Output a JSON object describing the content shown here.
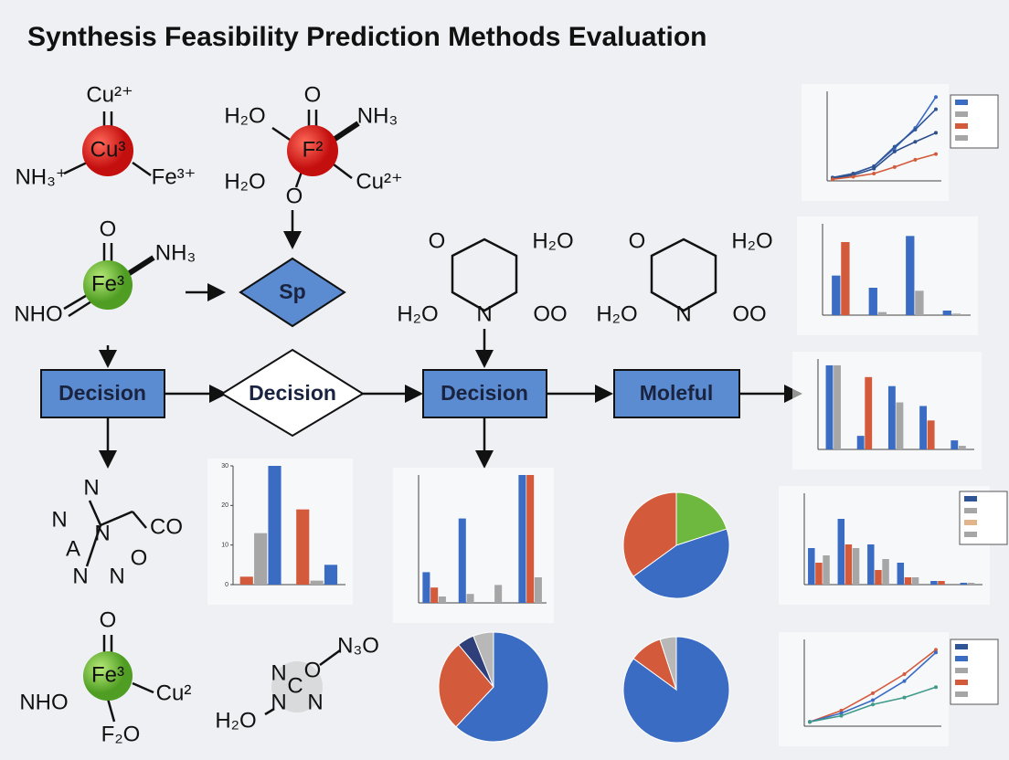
{
  "title": "Synthesis Feasibility Prediction Methods Evaluation",
  "molecules": [
    {
      "atoms": [
        "Cu²⁺",
        "Cu³",
        "NH₃⁺",
        "Fe³⁺"
      ]
    },
    {
      "atoms": [
        "H₂O",
        "O",
        "F²",
        "NH₃",
        "H₂O",
        "Cu²⁺",
        "O"
      ]
    },
    {
      "atoms": [
        "O",
        "Fe³",
        "NH₃",
        "NHO"
      ]
    },
    {
      "atoms": [
        "O",
        "H₂O",
        "H₂O",
        "N",
        "OO"
      ]
    },
    {
      "atoms": [
        "O",
        "H₂O",
        "H₂O",
        "N",
        "OO"
      ]
    },
    {
      "atoms": [
        "N",
        "N",
        "N",
        "CO",
        "A",
        "O",
        "N",
        "N"
      ]
    },
    {
      "atoms": [
        "O",
        "Fe³",
        "Cu²",
        "NHO",
        "F₂O"
      ]
    },
    {
      "atoms": [
        "N₃O",
        "N",
        "O",
        "C",
        "N",
        "N",
        "H₂O"
      ]
    }
  ],
  "flow": {
    "sp": "Sp",
    "boxes": [
      "Decision",
      "Decision",
      "Decision",
      "Moleful"
    ]
  },
  "charts": [
    {
      "type": "line",
      "ylim": [
        0,
        11
      ],
      "series": [
        {
          "color": "#3a6cc4",
          "values": [
            0.4,
            0.9,
            1.8,
            4,
            6.5,
            10.3
          ]
        },
        {
          "color": "#2f5597",
          "values": [
            0.4,
            0.9,
            1.8,
            4.2,
            6.3,
            8.8
          ]
        },
        {
          "color": "#2e4e8c",
          "values": [
            0.3,
            0.7,
            1.5,
            3.6,
            4.8,
            5.9
          ]
        },
        {
          "color": "#d35a3b",
          "values": [
            0.2,
            0.5,
            0.9,
            1.7,
            2.6,
            3.3
          ]
        }
      ],
      "legend_colors": [
        "#3a6cc4",
        "#a6a6a6",
        "#d35a3b",
        "#a6a6a6"
      ]
    },
    {
      "type": "bar",
      "ylim": [
        0,
        30
      ],
      "series": [
        {
          "color": "#3a6cc4",
          "values": [
            13,
            9,
            26,
            1.5
          ]
        },
        {
          "color": "#d35a3b",
          "values": [
            24,
            null,
            null,
            null
          ]
        },
        {
          "color": "#a6a6a6",
          "values": [
            null,
            1,
            8,
            0.5
          ]
        }
      ]
    },
    {
      "type": "bar",
      "ylim": [
        0,
        100
      ],
      "series": [
        {
          "color": "#3a6cc4",
          "values": [
            93,
            15,
            70,
            48,
            10
          ]
        },
        {
          "color": "#a6a6a6",
          "values": [
            93,
            null,
            52,
            null,
            4
          ]
        },
        {
          "color": "#d35a3b",
          "values": [
            null,
            80,
            null,
            32,
            null
          ]
        }
      ]
    },
    {
      "type": "bar",
      "ylim": [
        0,
        25
      ],
      "series": [
        {
          "color": "#3a6cc4",
          "values": [
            10,
            18,
            11,
            6,
            1,
            0.5
          ]
        },
        {
          "color": "#d35a3b",
          "values": [
            6,
            11,
            4,
            2,
            1,
            null
          ]
        },
        {
          "color": "#a6a6a6",
          "values": [
            8,
            10,
            7,
            2,
            null,
            0.5
          ]
        }
      ],
      "legend_colors": [
        "#2f5597",
        "#a6a6a6",
        "#e2b48c",
        "#a6a6a6"
      ]
    },
    {
      "type": "line",
      "ylim": [
        0,
        100
      ],
      "series": [
        {
          "color": "#d35a3b",
          "values": [
            5,
            18,
            38,
            60,
            88
          ]
        },
        {
          "color": "#3a6cc4",
          "values": [
            5,
            15,
            30,
            52,
            85
          ]
        },
        {
          "color": "#3f9a8a",
          "values": [
            5,
            12,
            25,
            33,
            45
          ]
        }
      ],
      "legend_colors": [
        "#2f5597",
        "#3a6cc4",
        "#a6a6a6",
        "#d35a3b",
        "#a6a6a6"
      ]
    },
    {
      "type": "bar",
      "ylim": [
        0,
        30
      ],
      "yticks": [
        0,
        10,
        20,
        30
      ],
      "series": [
        {
          "color": "#d35a3b",
          "values": [
            2,
            19
          ]
        },
        {
          "color": "#a6a6a6",
          "values": [
            13,
            1
          ]
        },
        {
          "color": "#3a6cc4",
          "values": [
            30,
            5
          ]
        }
      ]
    },
    {
      "type": "bar",
      "ylim": [
        0,
        100
      ],
      "series": [
        {
          "color": "#3a6cc4",
          "values": [
            24,
            66,
            null,
            100
          ]
        },
        {
          "color": "#d35a3b",
          "values": [
            12,
            null,
            null,
            100
          ]
        },
        {
          "color": "#a6a6a6",
          "values": [
            5,
            7,
            14,
            20
          ]
        }
      ]
    },
    {
      "type": "pie",
      "values": [
        20,
        45,
        35
      ],
      "colors": [
        "#6fb83f",
        "#3a6cc4",
        "#d35a3b"
      ]
    },
    {
      "type": "pie",
      "values": [
        62,
        27,
        5,
        6
      ],
      "colors": [
        "#3a6cc4",
        "#d35a3b",
        "#2e3f7a",
        "#b8b8b8"
      ]
    },
    {
      "type": "pie",
      "values": [
        85,
        10,
        5
      ],
      "colors": [
        "#3a6cc4",
        "#d35a3b",
        "#b8b8b8"
      ]
    }
  ]
}
